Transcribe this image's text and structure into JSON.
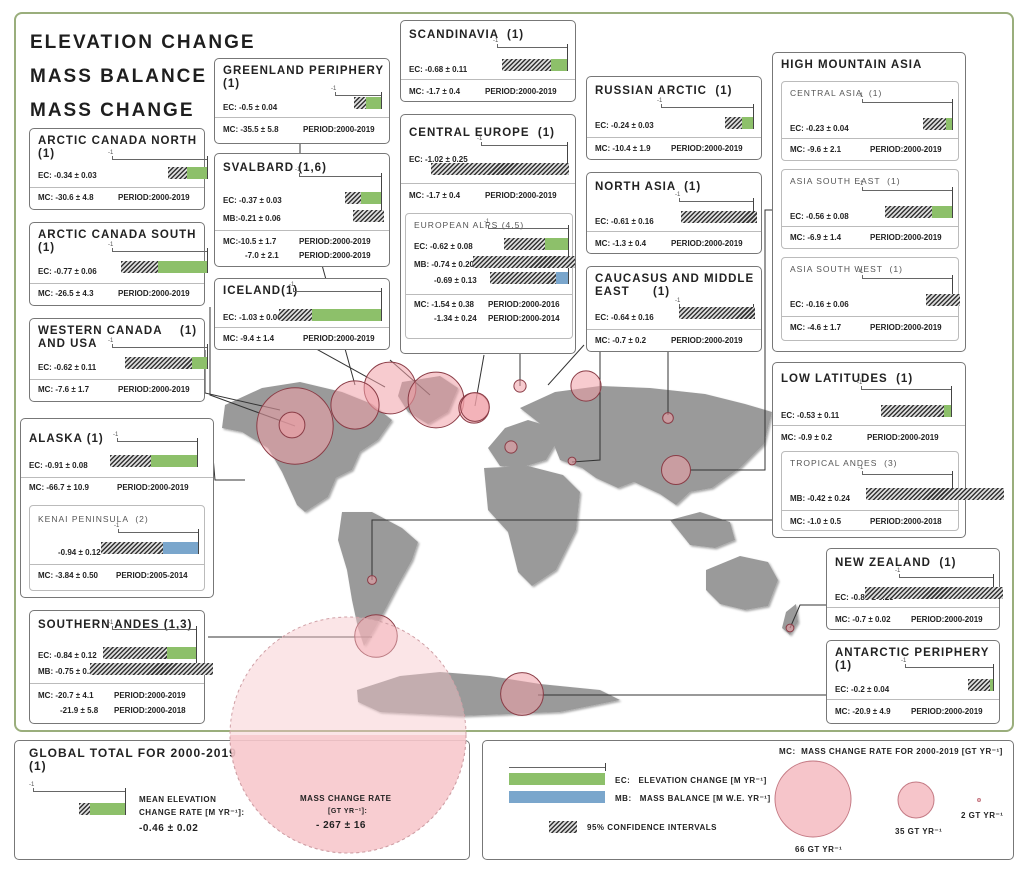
{
  "titles": [
    "ELEVATION CHANGE",
    "MASS BALANCE",
    "MASS CHANGE"
  ],
  "labels": {
    "ec": "EC:",
    "mb": "MB:",
    "mc": "MC:",
    "period": "PERIOD:",
    "axis_min": "-1"
  },
  "colors": {
    "ec": "#8dc06a",
    "mb": "#7aa6cc",
    "circle": "#f0a0a8",
    "land": "#9a9a9a",
    "frame": "#9aae7c"
  },
  "regions": {
    "arctic_canada_north": {
      "name": "ARCTIC CANADA NORTH",
      "ref": "(1)",
      "ec": "-0.34 ± 0.03",
      "mc": "-30.6 ± 4.8",
      "period": "2000-2019"
    },
    "arctic_canada_south": {
      "name": "ARCTIC CANADA SOUTH",
      "ref": "(1)",
      "ec": "-0.77 ± 0.06",
      "mc": "-26.5 ± 4.3",
      "period": "2000-2019"
    },
    "western_canada": {
      "name": "WESTERN CANADA AND USA",
      "ref": "(1)",
      "ec": "-0.62 ± 0.11",
      "mc": "-7.6 ± 1.7",
      "period": "2000-2019"
    },
    "alaska": {
      "name": "ALASKA",
      "ref": "(1)",
      "ec": "-0.91 ± 0.08",
      "mc": "-66.7 ± 10.9",
      "period": "2000-2019",
      "kenai": {
        "name": "KENAI PENINSULA",
        "ref": "(2)",
        "mb": "-0.94 ± 0.12",
        "mc": "-3.84 ± 0.50",
        "period": "2005-2014"
      }
    },
    "southern_andes": {
      "name": "SOUTHERN ANDES",
      "ref": "(1,3)",
      "ec": "-0.84 ± 0.12",
      "mb": "-0.75 ± 0.23",
      "mc": "-20.7 ± 4.1",
      "period": "2000-2019",
      "mc2": "-21.9 ± 5.8",
      "period2": "2000-2018"
    },
    "greenland": {
      "name": "GREENLAND PERIPHERY",
      "ref": "(1)",
      "ec": "-0.5 ± 0.04",
      "mc": "-35.5 ± 5.8",
      "period": "2000-2019"
    },
    "svalbard": {
      "name": "SVALBARD",
      "ref": "(1,6)",
      "ec": "-0.37 ± 0.03",
      "mb": "-0.21 ± 0.06",
      "mc": "-10.5 ± 1.7",
      "period": "2000-2019",
      "mc2": "-7.0 ± 2.1",
      "period2": "2000-2019"
    },
    "iceland": {
      "name": "ICELAND",
      "ref": "(1)",
      "ec": "-1.03 ± 0.06",
      "mc": "-9.4 ± 1.4",
      "period": "2000-2019"
    },
    "scandinavia": {
      "name": "SCANDINAVIA",
      "ref": "(1)",
      "ec": "-0.68 ± 0.11",
      "mc": "-1.7 ± 0.4",
      "period": "2000-2019"
    },
    "central_europe": {
      "name": "CENTRAL EUROPE",
      "ref": "(1)",
      "ec": "-1.02 ± 0.25",
      "mc": "-1.7 ± 0.4",
      "period": "2000-2019",
      "alps": {
        "name": "EUROPEAN ALPS",
        "ref": "(4,5)",
        "ec": "-0.62 ± 0.08",
        "mb": "-0.74 ± 0.20",
        "mb2": "-0.69 ± 0.13",
        "mc": "-1.54 ± 0.38",
        "period": "2000-2016",
        "mc2": "-1.34 ± 0.24",
        "period2": "2000-2014"
      }
    },
    "russian_arctic": {
      "name": "RUSSIAN ARCTIC",
      "ref": "(1)",
      "ec": "-0.24 ± 0.03",
      "mc": "-10.4 ± 1.9",
      "period": "2000-2019"
    },
    "north_asia": {
      "name": "NORTH ASIA",
      "ref": "(1)",
      "ec": "-0.61 ± 0.16",
      "mc": "-1.3 ± 0.4",
      "period": "2000-2019"
    },
    "caucasus": {
      "name": "CAUCASUS AND MIDDLE EAST",
      "ref": "(1)",
      "ec": "-0.64 ± 0.16",
      "mc": "-0.7 ± 0.2",
      "period": "2000-2019"
    },
    "hma": {
      "name": "HIGH MOUNTAIN ASIA",
      "central_asia": {
        "name": "CENTRAL ASIA",
        "ref": "(1)",
        "ec": "-0.23 ± 0.04",
        "mc": "-9.6 ± 2.1",
        "period": "2000-2019"
      },
      "asia_se": {
        "name": "ASIA SOUTH EAST",
        "ref": "(1)",
        "ec": "-0.56 ± 0.08",
        "mc": "-6.9 ± 1.4",
        "period": "2000-2019"
      },
      "asia_sw": {
        "name": "ASIA SOUTH WEST",
        "ref": "(1)",
        "ec": "-0.16 ± 0.06",
        "mc": "-4.6 ± 1.7",
        "period": "2000-2019"
      }
    },
    "low_latitudes": {
      "name": "LOW LATITUDES",
      "ref": "(1)",
      "ec": "-0.53 ± 0.11",
      "mc": "-0.9 ± 0.2",
      "period": "2000-2019",
      "tropical_andes": {
        "name": "TROPICAL ANDES",
        "ref": "(3)",
        "mb": "-0.42 ± 0.24",
        "mc": "-1.0 ± 0.5",
        "period": "2000-2018"
      }
    },
    "new_zealand": {
      "name": "NEW ZEALAND",
      "ref": "(1)",
      "ec": "-0.85 ± 0.23",
      "mc": "-0.7 ± 0.02",
      "period": "2000-2019"
    },
    "antarctic": {
      "name": "ANTARCTIC PERIPHERY",
      "ref": "(1)",
      "ec": "-0.2 ± 0.04",
      "mc": "-20.9 ± 4.9",
      "period": "2000-2019"
    }
  },
  "global": {
    "title": "GLOBAL TOTAL FOR 2000-2019",
    "ref": "(1)",
    "ec_label_1": "MEAN ELEVATION",
    "ec_label_2": "CHANGE RATE [M YR⁻¹]:",
    "ec": "-0.46 ± 0.02",
    "mc_label_1": "MASS CHANGE RATE",
    "mc_label_2": "[GT YR⁻¹]:",
    "mc": "- 267 ± 16"
  },
  "legend": {
    "ec_text": "ELEVATION CHANGE [M YR⁻¹]",
    "mb_text": "MASS BALANCE [M W.E. YR⁻¹]",
    "ci_text": "95% CONFIDENCE INTERVALS",
    "mc_text": "MASS CHANGE RATE FOR 2000-2019 [GT YR⁻¹]",
    "size_66": "66 GT YR⁻¹",
    "size_35": "35 GT YR⁻¹",
    "size_2": "2 GT YR⁻¹"
  },
  "chart_data": {
    "type": "bar",
    "title": "ELEVATION CHANGE / MASS BALANCE / MASS CHANGE",
    "xlim": [
      -1,
      0
    ],
    "series": [
      {
        "name": "EC",
        "values": [
          {
            "region": "ARCTIC CANADA NORTH",
            "value": -0.34,
            "ci": 0.03
          },
          {
            "region": "ARCTIC CANADA SOUTH",
            "value": -0.77,
            "ci": 0.06
          },
          {
            "region": "WESTERN CANADA AND USA",
            "value": -0.62,
            "ci": 0.11
          },
          {
            "region": "ALASKA",
            "value": -0.91,
            "ci": 0.08
          },
          {
            "region": "SOUTHERN ANDES",
            "value": -0.84,
            "ci": 0.12
          },
          {
            "region": "GREENLAND PERIPHERY",
            "value": -0.5,
            "ci": 0.04
          },
          {
            "region": "SVALBARD",
            "value": -0.37,
            "ci": 0.03
          },
          {
            "region": "ICELAND",
            "value": -1.03,
            "ci": 0.06
          },
          {
            "region": "SCANDINAVIA",
            "value": -0.68,
            "ci": 0.11
          },
          {
            "region": "CENTRAL EUROPE",
            "value": -1.02,
            "ci": 0.25
          },
          {
            "region": "EUROPEAN ALPS",
            "value": -0.62,
            "ci": 0.08
          },
          {
            "region": "RUSSIAN ARCTIC",
            "value": -0.24,
            "ci": 0.03
          },
          {
            "region": "NORTH ASIA",
            "value": -0.61,
            "ci": 0.16
          },
          {
            "region": "CAUCASUS AND MIDDLE EAST",
            "value": -0.64,
            "ci": 0.16
          },
          {
            "region": "CENTRAL ASIA",
            "value": -0.23,
            "ci": 0.04
          },
          {
            "region": "ASIA SOUTH EAST",
            "value": -0.56,
            "ci": 0.08
          },
          {
            "region": "ASIA SOUTH WEST",
            "value": -0.16,
            "ci": 0.06
          },
          {
            "region": "LOW LATITUDES",
            "value": -0.53,
            "ci": 0.11
          },
          {
            "region": "NEW ZEALAND",
            "value": -0.85,
            "ci": 0.23
          },
          {
            "region": "ANTARCTIC PERIPHERY",
            "value": -0.2,
            "ci": 0.04
          },
          {
            "region": "GLOBAL TOTAL",
            "value": -0.46,
            "ci": 0.02
          }
        ]
      },
      {
        "name": "MB",
        "values": [
          {
            "region": "KENAI PENINSULA",
            "value": -0.94,
            "ci": 0.12
          },
          {
            "region": "SOUTHERN ANDES",
            "value": -0.75,
            "ci": 0.23
          },
          {
            "region": "SVALBARD",
            "value": -0.21,
            "ci": 0.06
          },
          {
            "region": "EUROPEAN ALPS",
            "value": -0.74,
            "ci": 0.2
          },
          {
            "region": "EUROPEAN ALPS",
            "value": -0.69,
            "ci": 0.13
          },
          {
            "region": "TROPICAL ANDES",
            "value": -0.42,
            "ci": 0.24
          }
        ]
      },
      {
        "name": "MC",
        "values": [
          {
            "region": "ALASKA",
            "value": -66.7
          },
          {
            "region": "ARCTIC CANADA NORTH",
            "value": -30.6
          },
          {
            "region": "ARCTIC CANADA SOUTH",
            "value": -26.5
          },
          {
            "region": "WESTERN CANADA AND USA",
            "value": -7.6
          },
          {
            "region": "GREENLAND PERIPHERY",
            "value": -35.5
          },
          {
            "region": "SVALBARD",
            "value": -10.5
          },
          {
            "region": "ICELAND",
            "value": -9.4
          },
          {
            "region": "SCANDINAVIA",
            "value": -1.7
          },
          {
            "region": "CENTRAL EUROPE",
            "value": -1.7
          },
          {
            "region": "RUSSIAN ARCTIC",
            "value": -10.4
          },
          {
            "region": "NORTH ASIA",
            "value": -1.3
          },
          {
            "region": "CAUCASUS AND MIDDLE EAST",
            "value": -0.7
          },
          {
            "region": "CENTRAL ASIA",
            "value": -9.6
          },
          {
            "region": "ASIA SOUTH EAST",
            "value": -6.9
          },
          {
            "region": "ASIA SOUTH WEST",
            "value": -4.6
          },
          {
            "region": "LOW LATITUDES",
            "value": -0.9
          },
          {
            "region": "SOUTHERN ANDES",
            "value": -20.7
          },
          {
            "region": "NEW ZEALAND",
            "value": -0.7
          },
          {
            "region": "ANTARCTIC PERIPHERY",
            "value": -20.9
          },
          {
            "region": "GLOBAL TOTAL",
            "value": -267
          }
        ]
      }
    ]
  }
}
